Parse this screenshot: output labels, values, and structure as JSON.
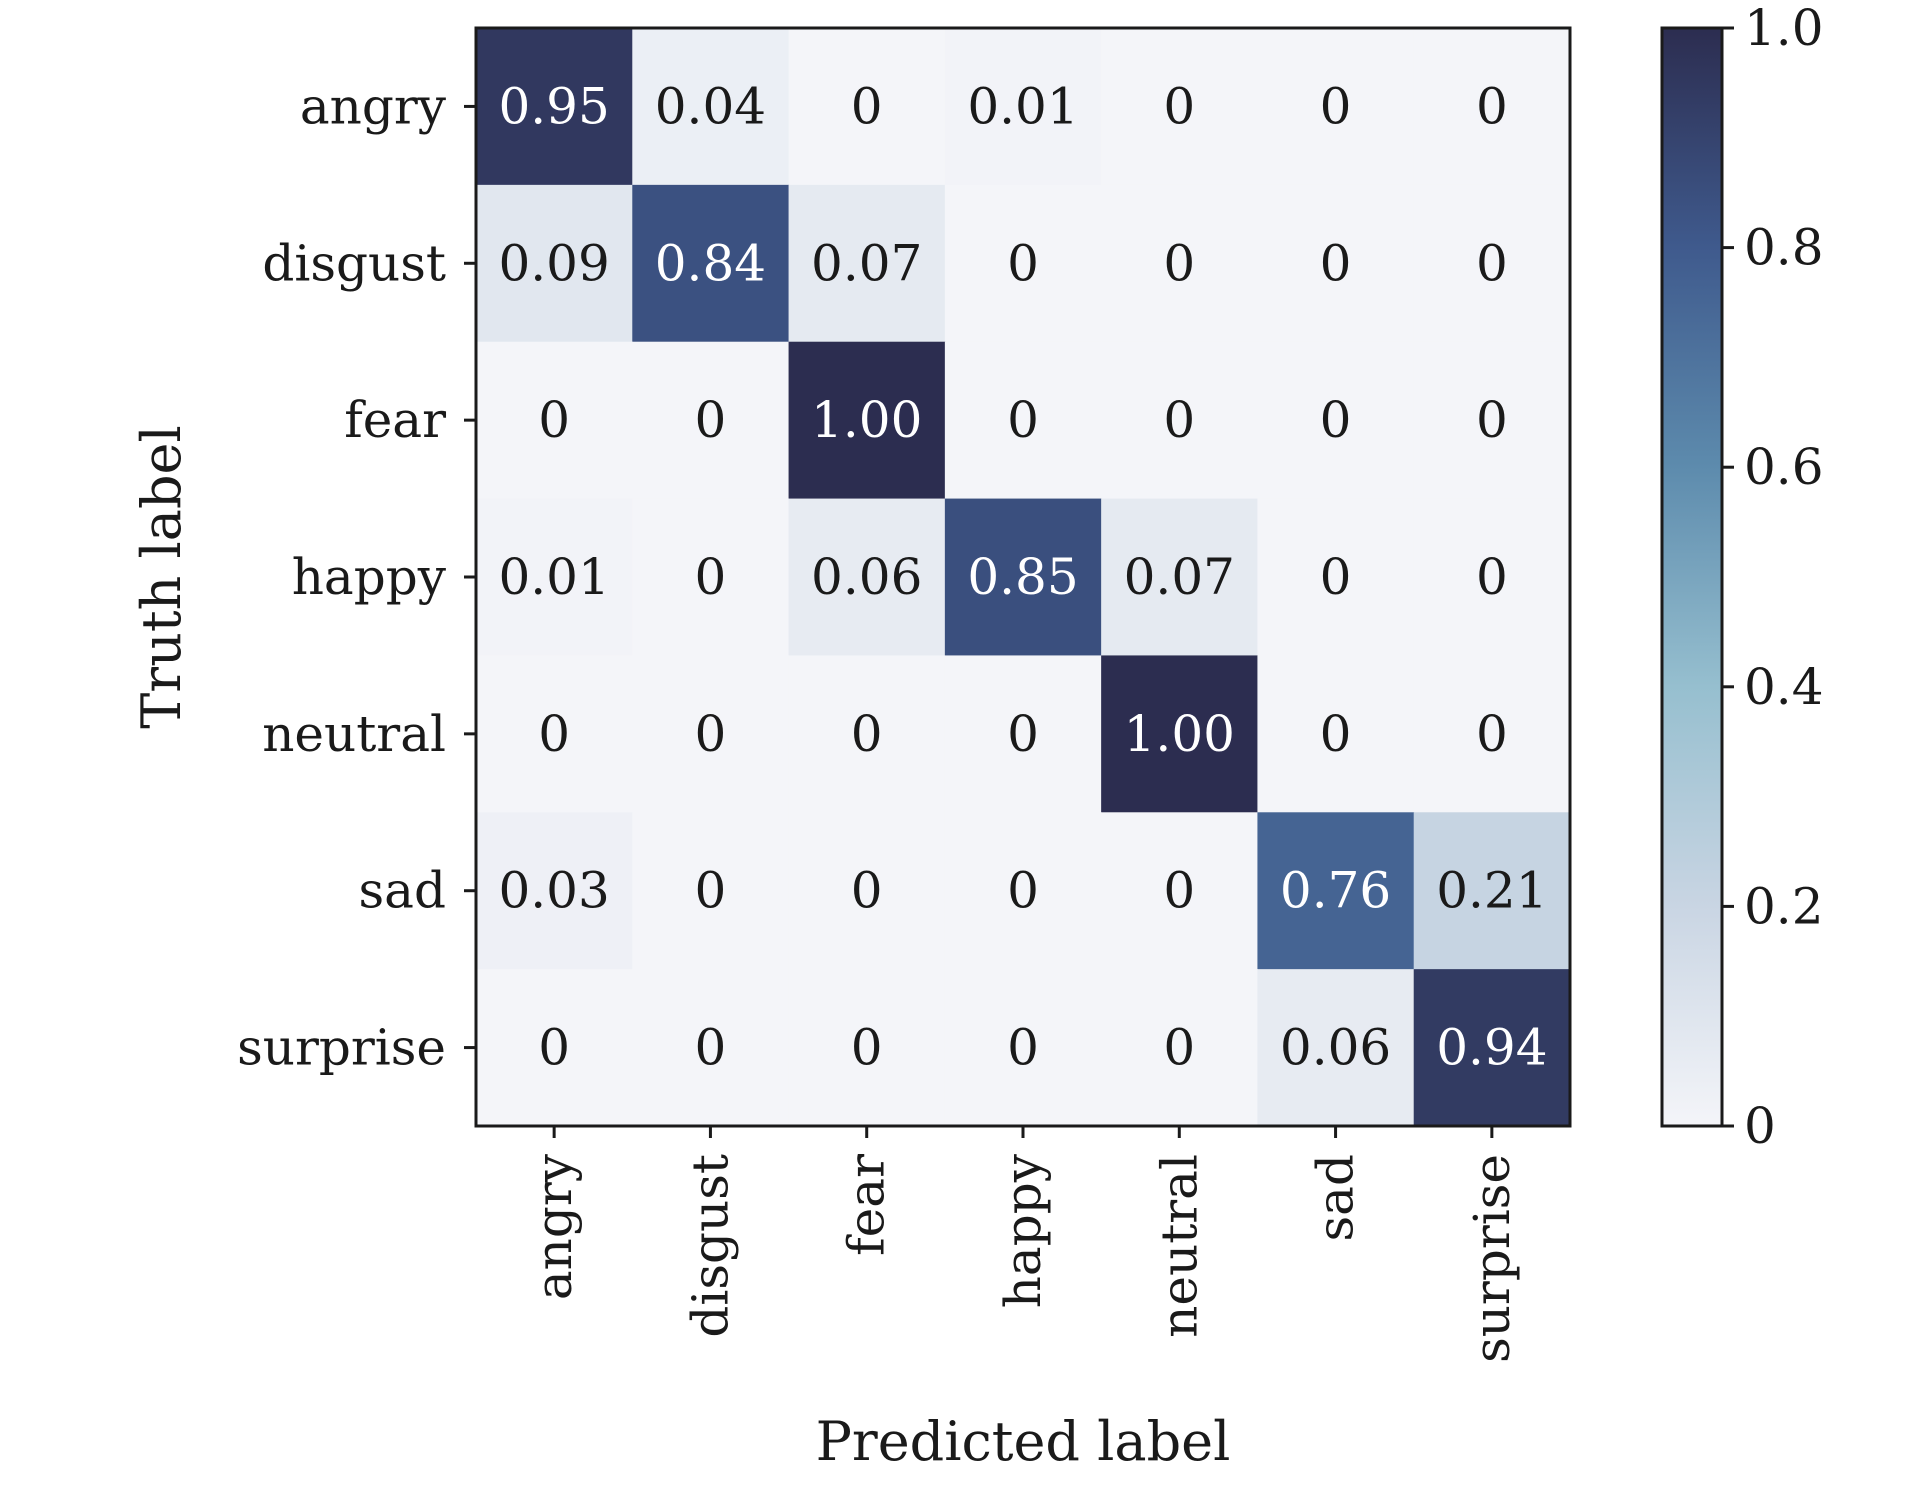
{
  "chart_data": {
    "type": "heatmap",
    "title": "",
    "xlabel": "Predicted label",
    "ylabel": "Truth label",
    "x_categories": [
      "angry",
      "disgust",
      "fear",
      "happy",
      "neutral",
      "sad",
      "surprise"
    ],
    "y_categories": [
      "angry",
      "disgust",
      "fear",
      "happy",
      "neutral",
      "sad",
      "surprise"
    ],
    "values": [
      [
        0.95,
        0.04,
        0,
        0.01,
        0,
        0,
        0
      ],
      [
        0.09,
        0.84,
        0.07,
        0,
        0,
        0,
        0
      ],
      [
        0,
        0,
        1.0,
        0,
        0,
        0,
        0
      ],
      [
        0.01,
        0,
        0.06,
        0.85,
        0.07,
        0,
        0
      ],
      [
        0,
        0,
        0,
        0,
        1.0,
        0,
        0
      ],
      [
        0.03,
        0,
        0,
        0,
        0,
        0.76,
        0.21
      ],
      [
        0,
        0,
        0,
        0,
        0,
        0.06,
        0.94
      ]
    ],
    "cell_labels": [
      [
        "0.95",
        "0.04",
        "0",
        "0.01",
        "0",
        "0",
        "0"
      ],
      [
        "0.09",
        "0.84",
        "0.07",
        "0",
        "0",
        "0",
        "0"
      ],
      [
        "0",
        "0",
        "1.00",
        "0",
        "0",
        "0",
        "0"
      ],
      [
        "0.01",
        "0",
        "0.06",
        "0.85",
        "0.07",
        "0",
        "0"
      ],
      [
        "0",
        "0",
        "0",
        "0",
        "1.00",
        "0",
        "0"
      ],
      [
        "0.03",
        "0",
        "0",
        "0",
        "0",
        "0.76",
        "0.21"
      ],
      [
        "0",
        "0",
        "0",
        "0",
        "0",
        "0.06",
        "0.94"
      ]
    ],
    "colorbar": {
      "range": [
        0,
        1.0
      ],
      "ticks": [
        0,
        0.2,
        0.4,
        0.6,
        0.8,
        1.0
      ],
      "tick_labels": [
        "0",
        "0.2",
        "0.4",
        "0.6",
        "0.8",
        "1.0"
      ],
      "colors": [
        "#f4f5f9",
        "#c9d5e3",
        "#96bfcf",
        "#5d8bad",
        "#3f5a8d",
        "#2c2d50"
      ]
    },
    "label_color_dark": "#1a1a1a",
    "label_color_light": "#ffffff",
    "grid": false
  }
}
